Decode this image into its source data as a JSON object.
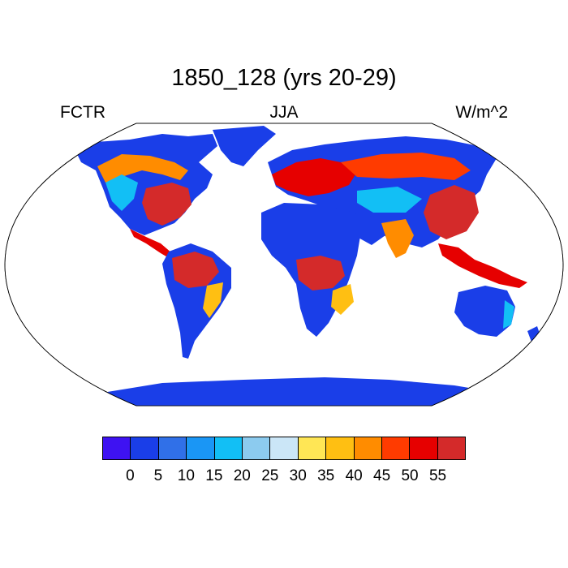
{
  "title": "1850_128 (yrs 20-29)",
  "left_label": "FCTR",
  "center_label": "JJA",
  "right_label": "W/m^2",
  "colorbar": {
    "colors": [
      "#3e12f2",
      "#1a3ee8",
      "#3070e8",
      "#1a96f5",
      "#12bff5",
      "#8ccbef",
      "#cbe6f7",
      "#ffe655",
      "#ffbf12",
      "#ff8c00",
      "#ff3b00",
      "#e60000",
      "#d42a2a"
    ],
    "ticks": [
      "0",
      "5",
      "10",
      "15",
      "20",
      "25",
      "30",
      "35",
      "40",
      "45",
      "50",
      "55"
    ]
  },
  "map_colors": {
    "ocean": "#ffffff",
    "low": "#1a3ee8",
    "mid_low": "#12bff5",
    "mid": "#ffe655",
    "mid_high": "#ff8c00",
    "high": "#d42a2a",
    "red": "#e60000"
  }
}
